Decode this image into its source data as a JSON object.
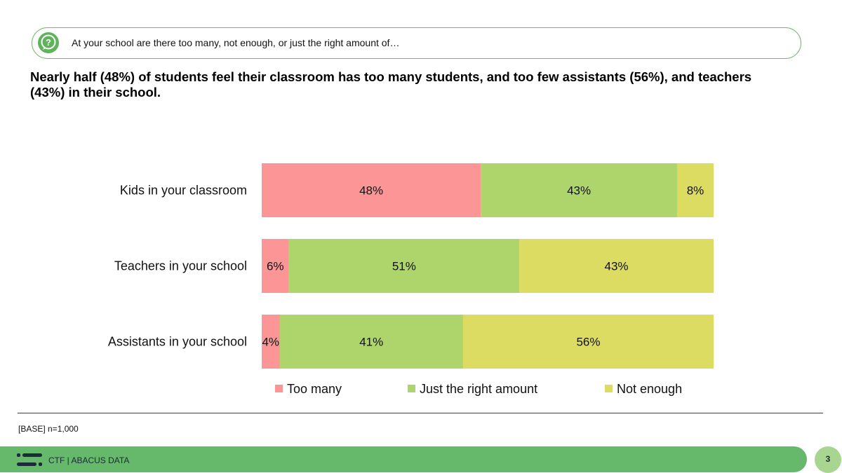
{
  "question": {
    "icon": "question-icon",
    "text": "At your school are there too many, not enough, or just the right amount of…"
  },
  "headline": "Nearly half (48%) of students feel their classroom has too many students, and too few assistants (56%), and teachers (43%) in their school.",
  "chart_data": {
    "type": "bar",
    "orientation": "horizontal",
    "stacked": true,
    "categories": [
      "Kids in your classroom",
      "Teachers in your school",
      "Assistants in your school"
    ],
    "series": [
      {
        "name": "Too many",
        "color": "#fc9596",
        "values": [
          48,
          6,
          4
        ]
      },
      {
        "name": "Just the right amount",
        "color": "#aed46c",
        "values": [
          43,
          51,
          41
        ]
      },
      {
        "name": "Not enough",
        "color": "#dcdb62",
        "values": [
          8,
          43,
          56
        ]
      }
    ],
    "value_suffix": "%",
    "legend_position": "bottom",
    "grid": false
  },
  "base_note": "[BASE] n=1,000",
  "footer": {
    "logo_icon": "ctf-logo-icon",
    "text": "CTF | ABACUS DATA",
    "page_number": "3"
  }
}
